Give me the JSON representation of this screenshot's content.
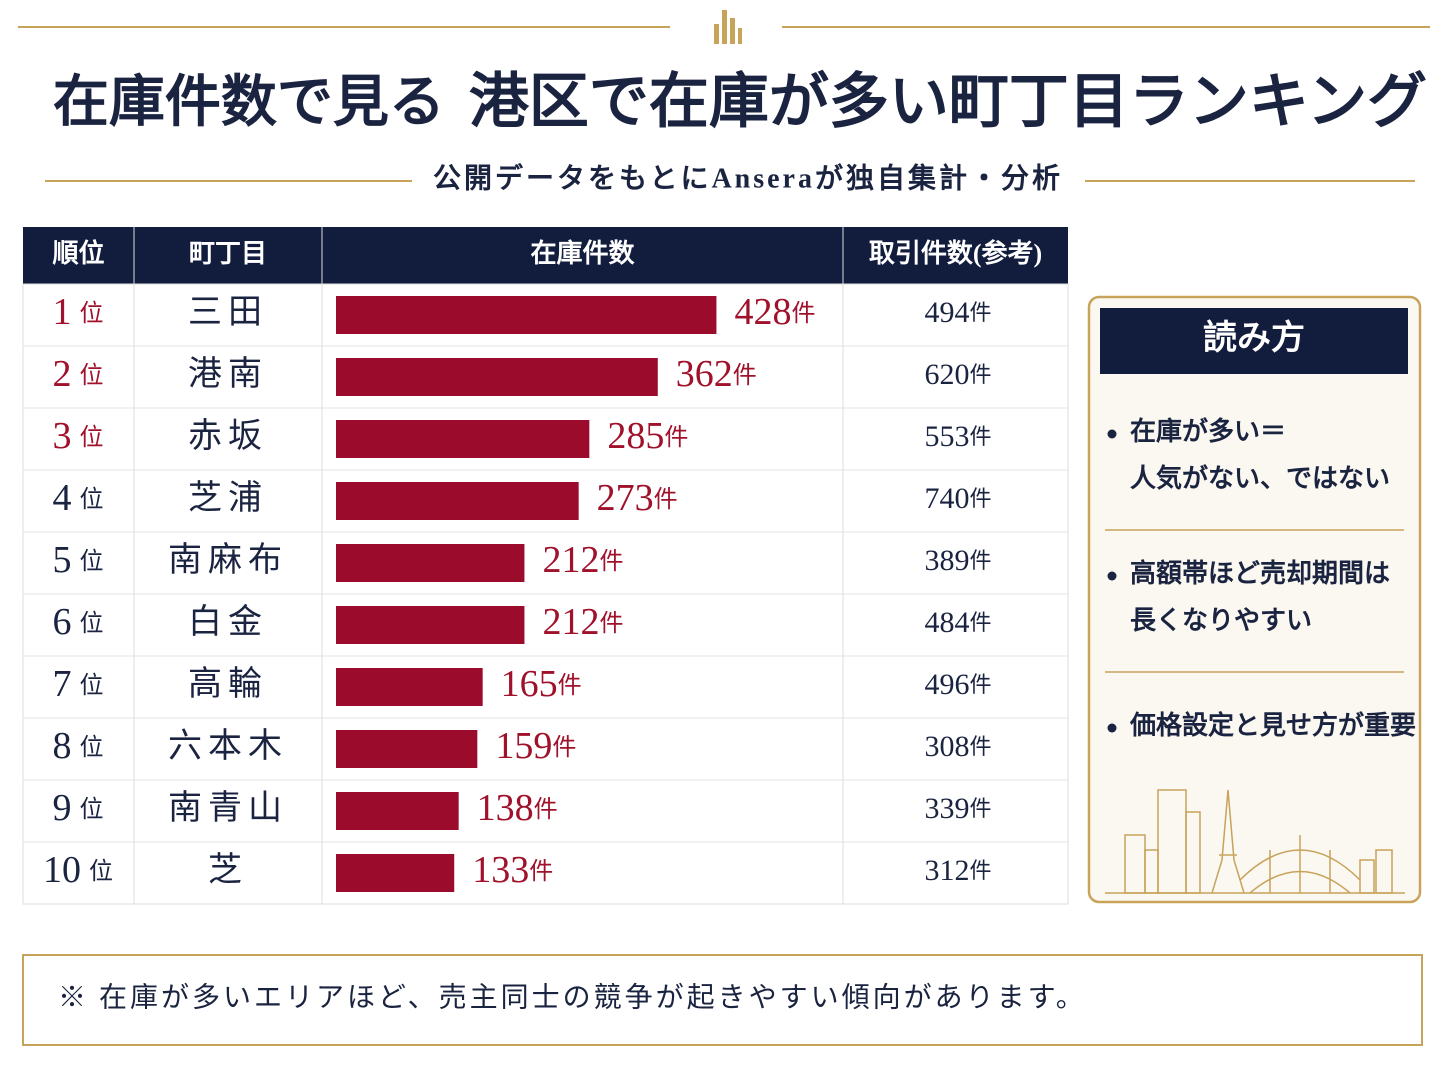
{
  "header": {
    "title_lead": "在庫件数で見る",
    "title_main": "港区で在庫が多い町丁目ランキング",
    "subtitle": "公開データをもとにAnseraが独自集計・分析"
  },
  "chart_data": {
    "type": "bar",
    "columns": [
      "順位",
      "町丁目",
      "在庫件数",
      "取引件数(参考)"
    ],
    "ranks": [
      1,
      2,
      3,
      4,
      5,
      6,
      7,
      8,
      9,
      10
    ],
    "rank_unit": "位",
    "categories": [
      "三田",
      "港南",
      "赤坂",
      "芝浦",
      "南麻布",
      "白金",
      "高輪",
      "六本木",
      "南青山",
      "芝"
    ],
    "values": [
      428,
      362,
      285,
      273,
      212,
      212,
      165,
      159,
      138,
      133
    ],
    "reference_values": [
      494,
      620,
      553,
      740,
      389,
      484,
      496,
      308,
      339,
      312
    ],
    "value_unit": "件",
    "color": "#9b0c2c",
    "xlim": [
      0,
      450
    ]
  },
  "side_panel": {
    "title": "読み方",
    "notes": [
      [
        "在庫が多い＝",
        "人気がない、ではない"
      ],
      [
        "高額帯ほど売却期間は",
        "長くなりやすい"
      ],
      [
        "価格設定と見せ方が重要"
      ]
    ]
  },
  "footer_note": "※ 在庫が多いエリアほど、売主同士の競争が起きやすい傾向があります。"
}
